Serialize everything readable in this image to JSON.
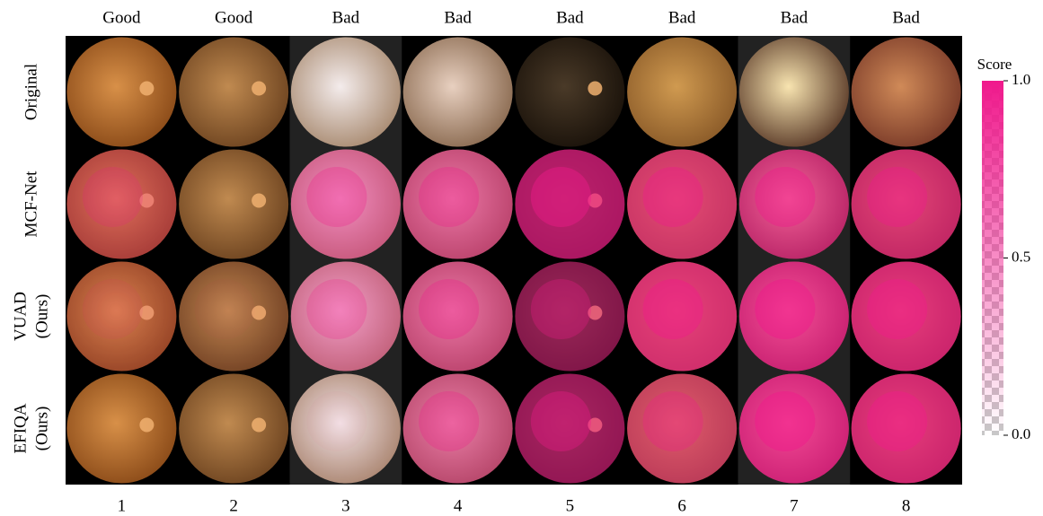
{
  "columns": {
    "headers": [
      "Good",
      "Good",
      "Bad",
      "Bad",
      "Bad",
      "Bad",
      "Bad",
      "Bad"
    ],
    "numbers": [
      "1",
      "2",
      "3",
      "4",
      "5",
      "6",
      "7",
      "8"
    ]
  },
  "rows": [
    {
      "lines": [
        "Original"
      ]
    },
    {
      "lines": [
        "MCF-Net"
      ]
    },
    {
      "lines": [
        "VUAD",
        "(Ours)"
      ]
    },
    {
      "lines": [
        "EFIQA",
        "(Ours)"
      ]
    }
  ],
  "colorbar": {
    "title": "Score",
    "lim": [
      0,
      1
    ],
    "ticks": [
      {
        "value": 0,
        "label": "0.0"
      },
      0.5,
      {
        "value": 1,
        "label": "1.0"
      }
    ]
  }
}
